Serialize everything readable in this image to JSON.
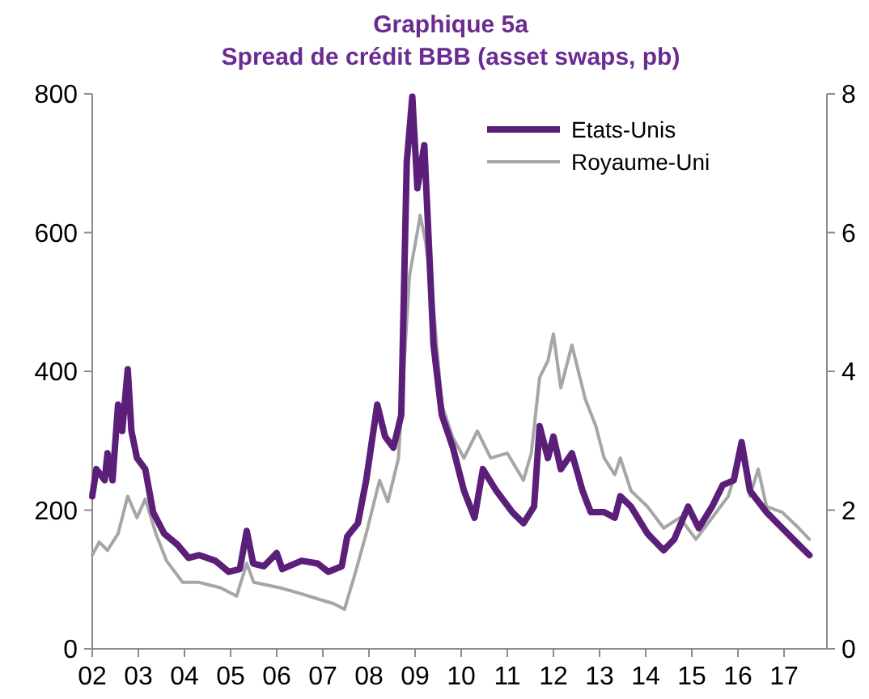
{
  "chart_data": {
    "type": "line",
    "title": "Graphique 5a",
    "subtitle": "Spread de crédit BBB (asset swaps, pb)",
    "xlim": [
      2002,
      2017.93
    ],
    "xticks": [
      {
        "value": 2002,
        "label": "02"
      },
      {
        "value": 2003,
        "label": "03"
      },
      {
        "value": 2004,
        "label": "04"
      },
      {
        "value": 2005,
        "label": "05"
      },
      {
        "value": 2006,
        "label": "06"
      },
      {
        "value": 2007,
        "label": "07"
      },
      {
        "value": 2008,
        "label": "08"
      },
      {
        "value": 2009,
        "label": "09"
      },
      {
        "value": 2010,
        "label": "10"
      },
      {
        "value": 2011,
        "label": "11"
      },
      {
        "value": 2012,
        "label": "12"
      },
      {
        "value": 2013,
        "label": "13"
      },
      {
        "value": 2014,
        "label": "14"
      },
      {
        "value": 2015,
        "label": "15"
      },
      {
        "value": 2016,
        "label": "16"
      },
      {
        "value": 2017,
        "label": "17"
      }
    ],
    "ylim": [
      0,
      800
    ],
    "yticks": [
      0,
      200,
      400,
      600,
      800
    ],
    "y2lim": [
      0,
      8
    ],
    "y2ticks": [
      0,
      2,
      4,
      6,
      8
    ],
    "grid": false,
    "legend": "top right",
    "line_style": "solid",
    "marker": "none",
    "series": [
      {
        "name": "Royaume-Uni",
        "color": "#a6a6a6",
        "x": [
          2002.0,
          2002.15,
          2002.33,
          2002.56,
          2002.77,
          2002.97,
          2003.15,
          2003.38,
          2003.61,
          2003.96,
          2004.3,
          2004.78,
          2005.13,
          2005.35,
          2005.5,
          2006.07,
          2006.5,
          2006.89,
          2007.24,
          2007.47,
          2007.71,
          2007.94,
          2008.23,
          2008.41,
          2008.64,
          2008.88,
          2009.05,
          2009.11,
          2009.23,
          2009.4,
          2009.58,
          2009.81,
          2010.06,
          2010.35,
          2010.64,
          2011.0,
          2011.35,
          2011.52,
          2011.7,
          2011.88,
          2012.0,
          2012.16,
          2012.4,
          2012.69,
          2012.92,
          2013.1,
          2013.33,
          2013.45,
          2013.68,
          2014.04,
          2014.39,
          2014.74,
          2015.09,
          2015.44,
          2015.79,
          2016.08,
          2016.26,
          2016.44,
          2016.62,
          2016.96,
          2017.32,
          2017.55
        ],
        "values": [
          135,
          154,
          142,
          166,
          220,
          189,
          216,
          166,
          127,
          96,
          96,
          88,
          76,
          123,
          96,
          88,
          80,
          72,
          65,
          57,
          111,
          166,
          243,
          212,
          275,
          539,
          601,
          625,
          586,
          492,
          352,
          306,
          275,
          314,
          275,
          282,
          243,
          282,
          391,
          415,
          454,
          376,
          438,
          360,
          321,
          275,
          251,
          275,
          228,
          205,
          174,
          189,
          158,
          189,
          220,
          282,
          220,
          259,
          205,
          197,
          174,
          158
        ]
      },
      {
        "name": "Etats-Unis",
        "color": "#5b1f7a",
        "x": [
          2002.0,
          2002.09,
          2002.27,
          2002.33,
          2002.44,
          2002.56,
          2002.65,
          2002.77,
          2002.85,
          2002.97,
          2003.15,
          2003.32,
          2003.56,
          2003.85,
          2004.09,
          2004.32,
          2004.67,
          2004.96,
          2005.2,
          2005.35,
          2005.49,
          2005.72,
          2006.0,
          2006.12,
          2006.54,
          2006.89,
          2007.12,
          2007.41,
          2007.53,
          2007.76,
          2007.94,
          2008.18,
          2008.35,
          2008.53,
          2008.7,
          2008.82,
          2008.94,
          2009.05,
          2009.2,
          2009.4,
          2009.58,
          2009.82,
          2010.06,
          2010.29,
          2010.47,
          2010.76,
          2011.11,
          2011.35,
          2011.58,
          2011.7,
          2011.88,
          2012.0,
          2012.16,
          2012.4,
          2012.63,
          2012.81,
          2013.1,
          2013.33,
          2013.45,
          2013.68,
          2014.04,
          2014.39,
          2014.62,
          2014.92,
          2015.15,
          2015.44,
          2015.67,
          2015.91,
          2016.08,
          2016.26,
          2016.62,
          2016.96,
          2017.32,
          2017.55
        ],
        "values": [
          220,
          259,
          243,
          282,
          243,
          352,
          314,
          403,
          314,
          275,
          259,
          197,
          166,
          150,
          131,
          135,
          127,
          111,
          115,
          170,
          123,
          119,
          138,
          115,
          127,
          123,
          111,
          119,
          162,
          181,
          243,
          352,
          306,
          290,
          337,
          702,
          796,
          664,
          726,
          438,
          337,
          290,
          228,
          189,
          259,
          228,
          197,
          181,
          205,
          321,
          275,
          306,
          259,
          282,
          228,
          197,
          197,
          189,
          220,
          205,
          166,
          142,
          158,
          205,
          174,
          205,
          236,
          243,
          298,
          228,
          197,
          174,
          150,
          135
        ]
      }
    ]
  }
}
